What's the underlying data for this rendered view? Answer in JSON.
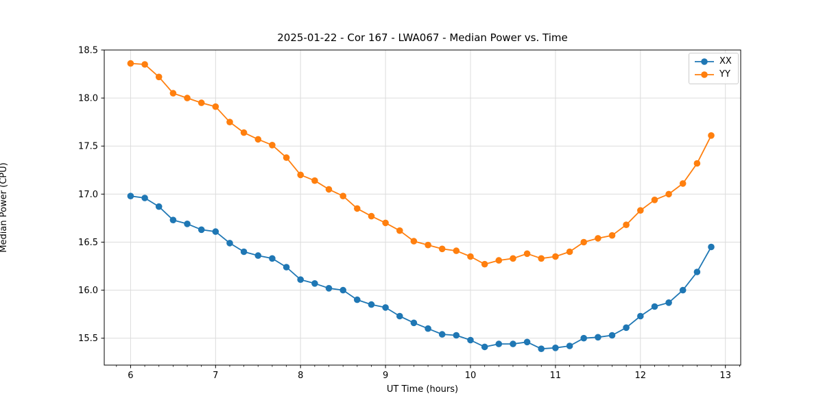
{
  "chart_data": {
    "type": "line",
    "title": "2025-01-22 - Cor 167 - LWA067 - Median Power vs. Time",
    "xlabel": "UT Time (hours)",
    "ylabel": "Median Power (CPU)",
    "xlim": [
      5.69,
      13.18
    ],
    "ylim": [
      15.22,
      18.5
    ],
    "x_ticks": [
      6,
      7,
      8,
      9,
      10,
      11,
      12,
      13
    ],
    "y_ticks": [
      15.5,
      16.0,
      16.5,
      17.0,
      17.5,
      18.0,
      18.5
    ],
    "x_minor_tick_step": 0.16667,
    "grid": true,
    "legend_position": "upper right",
    "x": [
      6.0,
      6.1667,
      6.3333,
      6.5,
      6.6667,
      6.8333,
      7.0,
      7.1667,
      7.3333,
      7.5,
      7.6667,
      7.8333,
      8.0,
      8.1667,
      8.3333,
      8.5,
      8.6667,
      8.8333,
      9.0,
      9.1667,
      9.3333,
      9.5,
      9.6667,
      9.8333,
      10.0,
      10.1667,
      10.3333,
      10.5,
      10.6667,
      10.8333,
      11.0,
      11.1667,
      11.3333,
      11.5,
      11.6667,
      11.8333,
      12.0,
      12.1667,
      12.3333,
      12.5,
      12.6667,
      12.8333
    ],
    "series": [
      {
        "name": "XX",
        "color": "#1f77b4",
        "values": [
          16.98,
          16.96,
          16.87,
          16.73,
          16.69,
          16.63,
          16.61,
          16.49,
          16.4,
          16.36,
          16.33,
          16.24,
          16.11,
          16.07,
          16.02,
          16.0,
          15.9,
          15.85,
          15.82,
          15.73,
          15.66,
          15.6,
          15.54,
          15.53,
          15.48,
          15.41,
          15.44,
          15.44,
          15.46,
          15.39,
          15.4,
          15.42,
          15.5,
          15.51,
          15.53,
          15.61,
          15.73,
          15.83,
          15.87,
          16.0,
          16.19,
          16.45
        ]
      },
      {
        "name": "YY",
        "color": "#ff7f0e",
        "values": [
          18.36,
          18.35,
          18.22,
          18.05,
          18.0,
          17.95,
          17.91,
          17.75,
          17.64,
          17.57,
          17.51,
          17.38,
          17.2,
          17.14,
          17.05,
          16.98,
          16.85,
          16.77,
          16.7,
          16.62,
          16.51,
          16.47,
          16.43,
          16.41,
          16.35,
          16.27,
          16.31,
          16.33,
          16.38,
          16.33,
          16.35,
          16.4,
          16.5,
          16.54,
          16.57,
          16.68,
          16.83,
          16.94,
          17.0,
          17.11,
          17.32,
          17.61
        ]
      }
    ]
  },
  "colors": {
    "grid": "#dcdcdc",
    "spine": "#000000",
    "tick": "#000000",
    "text": "#000000",
    "legend_border": "#cccccc"
  }
}
